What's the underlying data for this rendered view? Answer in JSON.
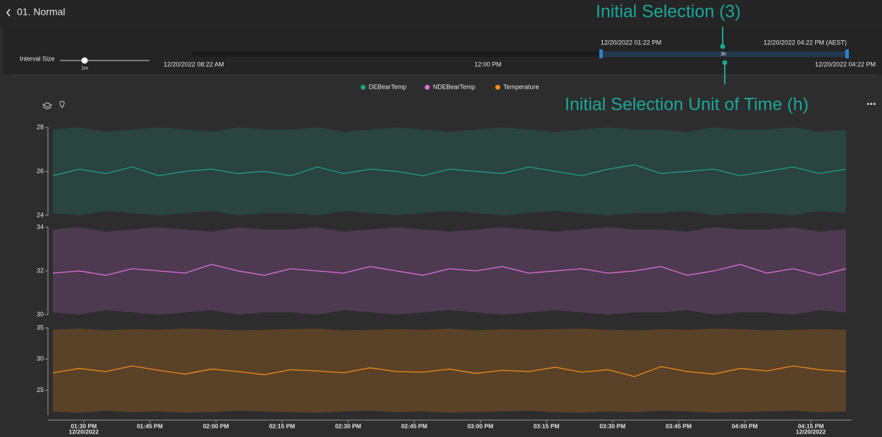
{
  "header": {
    "title": "01. Normal"
  },
  "interval": {
    "label": "Interval Size",
    "value_label": "1m"
  },
  "timeline": {
    "start": "12/20/2022 08:22 AM",
    "middle": "12:00 PM",
    "end": "12/20/2022 04:22 PM",
    "selection_start": "12/20/2022 01:22 PM",
    "selection_end": "12/20/2022 04:22 PM (AEST)",
    "selection_size": "3h"
  },
  "annotations": [
    "Initial Selection (3)",
    "Initial Selection Unit of Time (h)"
  ],
  "chart_data": [
    {
      "type": "line",
      "xlim": [
        803,
        983
      ],
      "ylim": [
        24,
        28
      ],
      "yticks": [
        24,
        26,
        28
      ],
      "x": [
        803,
        809,
        815,
        821,
        827,
        833,
        839,
        845,
        851,
        857,
        863,
        869,
        875,
        881,
        887,
        893,
        899,
        905,
        911,
        917,
        923,
        929,
        935,
        941,
        947,
        953,
        959,
        965,
        971,
        977,
        983
      ],
      "xticks": [
        {
          "value": 810,
          "label": "01:30 PM",
          "date": "12/20/2022"
        },
        {
          "value": 825,
          "label": "01:45 PM"
        },
        {
          "value": 840,
          "label": "02:00 PM"
        },
        {
          "value": 855,
          "label": "02:15 PM"
        },
        {
          "value": 870,
          "label": "02:30 PM"
        },
        {
          "value": 885,
          "label": "02:45 PM"
        },
        {
          "value": 900,
          "label": "03:00 PM"
        },
        {
          "value": 915,
          "label": "03:15 PM"
        },
        {
          "value": 930,
          "label": "03:30 PM"
        },
        {
          "value": 945,
          "label": "03:45 PM"
        },
        {
          "value": 960,
          "label": "04:00 PM"
        },
        {
          "value": 975,
          "label": "04:15 PM",
          "date": "12/20/2022"
        }
      ],
      "series": [
        {
          "name": "DEBearTemp",
          "color": "#1aa58a",
          "band_color": "#2a4440",
          "values": [
            25.8,
            26.1,
            25.9,
            26.2,
            25.8,
            26.0,
            26.1,
            25.9,
            26.0,
            25.8,
            26.2,
            25.9,
            26.1,
            26.0,
            25.8,
            26.1,
            26.0,
            25.9,
            26.2,
            26.0,
            25.8,
            26.1,
            26.3,
            25.9,
            26.0,
            26.1,
            25.8,
            26.0,
            26.2,
            25.9,
            26.1
          ],
          "band_upper": [
            27.9,
            28.0,
            27.8,
            27.9,
            28.0,
            27.9,
            27.8,
            28.0,
            27.9,
            27.9,
            28.0,
            27.8,
            27.9,
            28.0,
            27.9,
            27.8,
            27.9,
            28.0,
            27.9,
            27.8,
            27.9,
            28.0,
            27.9,
            27.9,
            27.8,
            28.0,
            27.9,
            27.9,
            28.0,
            27.8,
            27.9
          ],
          "band_lower": [
            24.1,
            24.0,
            24.2,
            24.1,
            24.0,
            24.1,
            24.2,
            24.0,
            24.1,
            24.1,
            24.0,
            24.2,
            24.1,
            24.0,
            24.1,
            24.2,
            24.1,
            24.0,
            24.1,
            24.2,
            24.1,
            24.0,
            24.1,
            24.1,
            24.2,
            24.0,
            24.1,
            24.1,
            24.0,
            24.2,
            24.1
          ]
        }
      ]
    },
    {
      "type": "line",
      "xlim": [
        803,
        983
      ],
      "ylim": [
        30,
        34
      ],
      "yticks": [
        30,
        32,
        34
      ],
      "x": [
        803,
        809,
        815,
        821,
        827,
        833,
        839,
        845,
        851,
        857,
        863,
        869,
        875,
        881,
        887,
        893,
        899,
        905,
        911,
        917,
        923,
        929,
        935,
        941,
        947,
        953,
        959,
        965,
        971,
        977,
        983
      ],
      "series": [
        {
          "name": "NDEBearTemp",
          "color": "#e070d8",
          "band_color": "#4d3a51",
          "values": [
            31.9,
            32.0,
            31.8,
            32.1,
            32.0,
            31.9,
            32.3,
            32.0,
            31.8,
            32.1,
            32.0,
            31.9,
            32.2,
            32.0,
            31.8,
            32.1,
            32.0,
            32.2,
            31.9,
            32.0,
            32.1,
            31.9,
            32.0,
            32.2,
            31.8,
            32.0,
            32.3,
            31.9,
            32.1,
            31.8,
            32.1
          ],
          "band_upper": [
            33.9,
            34.0,
            33.8,
            33.9,
            34.0,
            33.9,
            33.8,
            34.0,
            33.9,
            33.9,
            34.0,
            33.8,
            33.9,
            34.0,
            33.9,
            33.8,
            33.9,
            34.0,
            33.9,
            33.8,
            33.9,
            34.0,
            33.9,
            33.9,
            33.8,
            34.0,
            33.9,
            33.9,
            34.0,
            33.8,
            33.9
          ],
          "band_lower": [
            30.1,
            30.0,
            30.2,
            30.1,
            30.0,
            30.1,
            30.2,
            30.0,
            30.1,
            30.1,
            30.0,
            30.2,
            30.1,
            30.0,
            30.1,
            30.2,
            30.1,
            30.0,
            30.1,
            30.2,
            30.1,
            30.0,
            30.1,
            30.1,
            30.2,
            30.0,
            30.1,
            30.1,
            30.0,
            30.2,
            30.1
          ]
        }
      ]
    },
    {
      "type": "line",
      "xlim": [
        803,
        983
      ],
      "ylim": [
        21,
        35
      ],
      "yticks": [
        25,
        30,
        35
      ],
      "x": [
        803,
        809,
        815,
        821,
        827,
        833,
        839,
        845,
        851,
        857,
        863,
        869,
        875,
        881,
        887,
        893,
        899,
        905,
        911,
        917,
        923,
        929,
        935,
        941,
        947,
        953,
        959,
        965,
        971,
        977,
        983
      ],
      "series": [
        {
          "name": "Temperature",
          "color": "#f08c1a",
          "band_color": "#5a4228",
          "values": [
            27.8,
            28.5,
            28.0,
            28.9,
            28.2,
            27.6,
            28.4,
            28.0,
            27.5,
            28.3,
            28.1,
            27.8,
            28.6,
            28.0,
            27.9,
            28.4,
            27.7,
            28.2,
            28.0,
            28.7,
            27.9,
            28.3,
            27.2,
            28.8,
            28.0,
            27.6,
            28.5,
            28.1,
            28.9,
            28.3,
            28.0
          ],
          "band_upper": [
            34.7,
            34.9,
            34.6,
            34.8,
            34.7,
            34.9,
            34.8,
            34.6,
            34.7,
            34.8,
            34.9,
            34.6,
            34.7,
            34.8,
            34.7,
            34.9,
            34.6,
            34.8,
            34.7,
            34.8,
            34.9,
            34.7,
            34.6,
            34.8,
            34.7,
            34.9,
            34.8,
            34.6,
            34.7,
            34.8,
            34.7
          ],
          "band_lower": [
            21.6,
            21.4,
            21.7,
            21.5,
            21.6,
            21.4,
            21.5,
            21.7,
            21.6,
            21.5,
            21.4,
            21.6,
            21.7,
            21.5,
            21.6,
            21.4,
            21.5,
            21.6,
            21.7,
            21.5,
            21.4,
            21.6,
            21.5,
            21.7,
            21.6,
            21.4,
            21.5,
            21.6,
            21.7,
            21.5,
            21.6
          ]
        }
      ]
    }
  ]
}
